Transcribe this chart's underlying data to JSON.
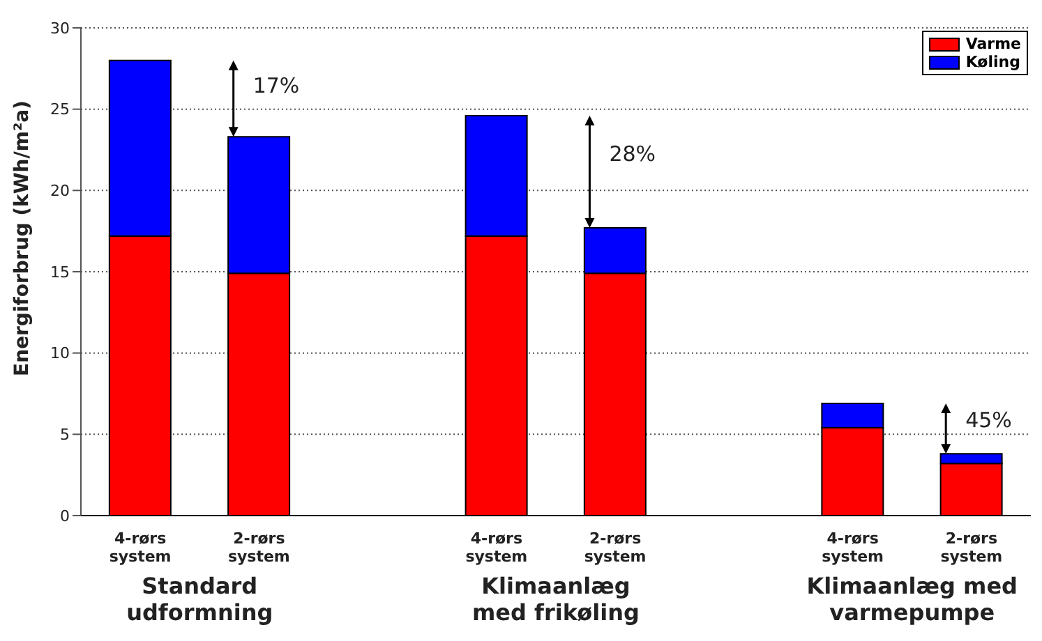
{
  "chart_data": {
    "type": "bar",
    "stacked": true,
    "ylabel": "Energiforbrug (kWh/m²a)",
    "categories": [
      "4-rørs system",
      "2-rørs system",
      null,
      "4-rørs system",
      "2-rørs system",
      null,
      "4-rørs system",
      "2-rørs system"
    ],
    "series": [
      {
        "name": "Varme",
        "color": "#ff0000",
        "values": [
          17.2,
          14.9,
          null,
          17.2,
          14.9,
          null,
          5.4,
          3.2
        ]
      },
      {
        "name": "Køling",
        "color": "#0000ff",
        "values": [
          10.8,
          8.4,
          null,
          7.4,
          2.8,
          null,
          1.5,
          0.6
        ]
      }
    ],
    "ylim": [
      0,
      30
    ],
    "yticks": [
      0,
      5,
      10,
      15,
      20,
      25,
      30
    ],
    "grid": "y",
    "legend": "top right",
    "annotations": [
      "Standard\nudformning",
      "Klimaanlæg\nmed frikøling",
      "Klimaanlæg med\nvarmepumpe",
      "17%",
      "28%",
      "45%"
    ]
  }
}
